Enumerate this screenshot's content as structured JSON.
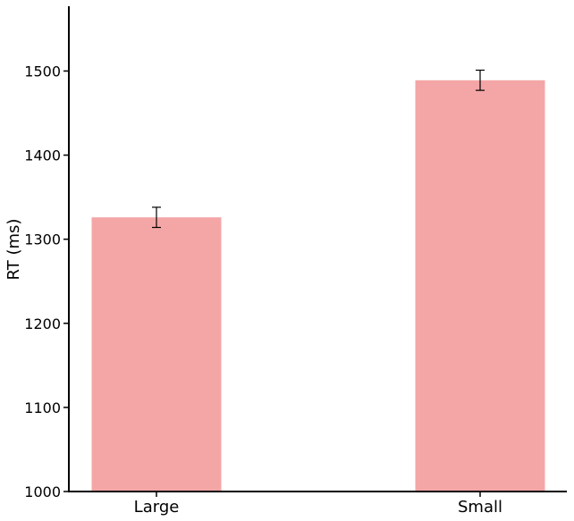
{
  "chart_data": {
    "type": "bar",
    "title": "",
    "xlabel": "",
    "ylabel": "RT (ms)",
    "categories": [
      "Large",
      "Small"
    ],
    "values": [
      1326,
      1489
    ],
    "errors": [
      12,
      12
    ],
    "ylim": [
      1000,
      1577
    ],
    "yticks": [
      1000,
      1100,
      1200,
      1300,
      1400,
      1500
    ],
    "bar_color": "#f4a6a6",
    "grid": false,
    "legend": "none"
  }
}
